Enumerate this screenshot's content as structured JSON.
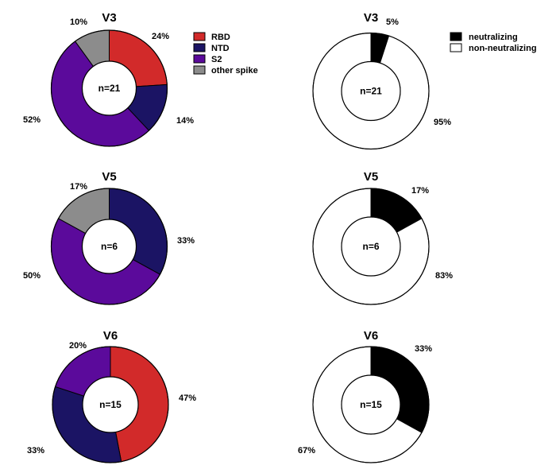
{
  "chart_data": [
    {
      "type": "pie",
      "title": "V3",
      "center_label": "n=21",
      "series": [
        {
          "name": "RBD",
          "value": 24,
          "label": "24%",
          "color": "#d22a2a"
        },
        {
          "name": "NTD",
          "value": 14,
          "label": "14%",
          "color": "#1b1464"
        },
        {
          "name": "S2",
          "value": 52,
          "label": "52%",
          "color": "#5b0a9b"
        },
        {
          "name": "other spike",
          "value": 10,
          "label": "10%",
          "color": "#8c8c8c"
        }
      ]
    },
    {
      "type": "pie",
      "title": "V3",
      "center_label": "n=21",
      "series": [
        {
          "name": "neutralizing",
          "value": 5,
          "label": "5%",
          "color": "#000000"
        },
        {
          "name": "non-neutralizing",
          "value": 95,
          "label": "95%",
          "color": "#ffffff"
        }
      ]
    },
    {
      "type": "pie",
      "title": "V5",
      "center_label": "n=6",
      "series": [
        {
          "name": "NTD",
          "value": 33,
          "label": "33%",
          "color": "#1b1464"
        },
        {
          "name": "S2",
          "value": 50,
          "label": "50%",
          "color": "#5b0a9b"
        },
        {
          "name": "other spike",
          "value": 17,
          "label": "17%",
          "color": "#8c8c8c"
        }
      ]
    },
    {
      "type": "pie",
      "title": "V5",
      "center_label": "n=6",
      "series": [
        {
          "name": "neutralizing",
          "value": 17,
          "label": "17%",
          "color": "#000000"
        },
        {
          "name": "non-neutralizing",
          "value": 83,
          "label": "83%",
          "color": "#ffffff"
        }
      ]
    },
    {
      "type": "pie",
      "title": "V6",
      "center_label": "n=15",
      "series": [
        {
          "name": "RBD",
          "value": 47,
          "label": "47%",
          "color": "#d22a2a"
        },
        {
          "name": "NTD",
          "value": 33,
          "label": "33%",
          "color": "#1b1464"
        },
        {
          "name": "S2",
          "value": 20,
          "label": "20%",
          "color": "#5b0a9b"
        }
      ]
    },
    {
      "type": "pie",
      "title": "V6",
      "center_label": "n=15",
      "series": [
        {
          "name": "neutralizing",
          "value": 33,
          "label": "33%",
          "color": "#000000"
        },
        {
          "name": "non-neutralizing",
          "value": 67,
          "label": "67%",
          "color": "#ffffff"
        }
      ]
    }
  ],
  "legends": [
    {
      "items": [
        {
          "label": "RBD",
          "color": "#d22a2a"
        },
        {
          "label": "NTD",
          "color": "#1b1464"
        },
        {
          "label": "S2",
          "color": "#5b0a9b"
        },
        {
          "label": "other spike",
          "color": "#8c8c8c"
        }
      ]
    },
    {
      "items": [
        {
          "label": "neutralizing",
          "color": "#000000"
        },
        {
          "label": "non-neutralizing",
          "color": "#ffffff"
        }
      ]
    }
  ]
}
